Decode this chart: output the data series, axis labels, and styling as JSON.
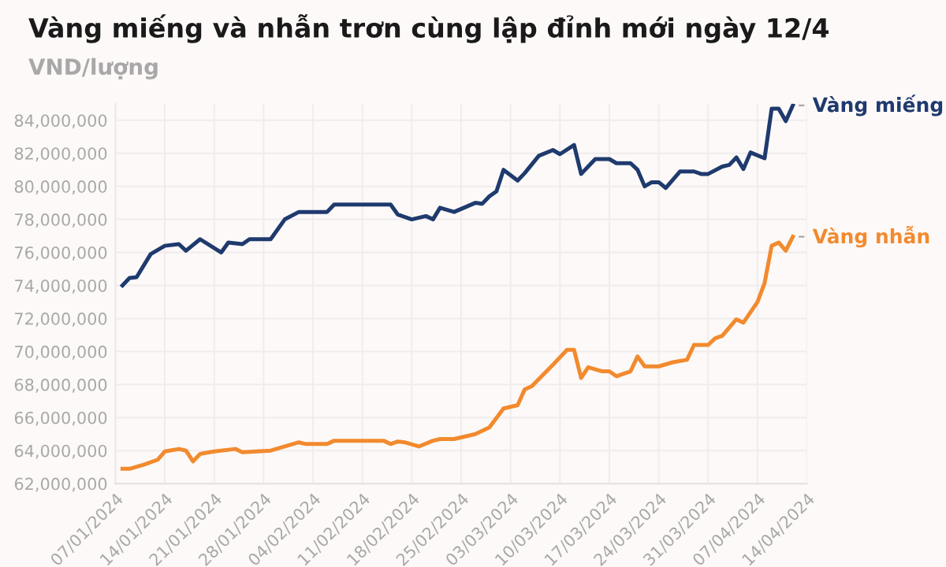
{
  "chart_data": {
    "type": "line",
    "title": "Vàng miếng và nhẫn trơn cùng lập đỉnh mới ngày 12/4",
    "ylabel": "VND/lượng",
    "series": [
      {
        "name": "Vàng miếng",
        "color": "#1f3a6e",
        "x": [
          "2024-01-08",
          "2024-01-09",
          "2024-01-10",
          "2024-01-12",
          "2024-01-14",
          "2024-01-16",
          "2024-01-17",
          "2024-01-19",
          "2024-01-22",
          "2024-01-23",
          "2024-01-25",
          "2024-01-26",
          "2024-01-29",
          "2024-01-31",
          "2024-02-02",
          "2024-02-06",
          "2024-02-07",
          "2024-02-15",
          "2024-02-16",
          "2024-02-18",
          "2024-02-20",
          "2024-02-21",
          "2024-02-22",
          "2024-02-24",
          "2024-02-27",
          "2024-02-28",
          "2024-02-29",
          "2024-03-01",
          "2024-03-02",
          "2024-03-04",
          "2024-03-05",
          "2024-03-07",
          "2024-03-09",
          "2024-03-10",
          "2024-03-12",
          "2024-03-13",
          "2024-03-15",
          "2024-03-17",
          "2024-03-18",
          "2024-03-20",
          "2024-03-21",
          "2024-03-22",
          "2024-03-23",
          "2024-03-24",
          "2024-03-25",
          "2024-03-27",
          "2024-03-29",
          "2024-03-30",
          "2024-03-31",
          "2024-04-02",
          "2024-04-03",
          "2024-04-04",
          "2024-04-05",
          "2024-04-06",
          "2024-04-08",
          "2024-04-09",
          "2024-04-10",
          "2024-04-11",
          "2024-04-12"
        ],
        "values": [
          74000000,
          74450000,
          74500000,
          75900000,
          76400000,
          76500000,
          76100000,
          76800000,
          76000000,
          76600000,
          76500000,
          76800000,
          76800000,
          78000000,
          78450000,
          78450000,
          78900000,
          78900000,
          78300000,
          78000000,
          78200000,
          78000000,
          78700000,
          78450000,
          79000000,
          78950000,
          79400000,
          79700000,
          81000000,
          80350000,
          80800000,
          81850000,
          82200000,
          81950000,
          82500000,
          80750000,
          81650000,
          81650000,
          81400000,
          81400000,
          81000000,
          80000000,
          80250000,
          80250000,
          79900000,
          80900000,
          80900000,
          80750000,
          80750000,
          81200000,
          81300000,
          81750000,
          81050000,
          82050000,
          81700000,
          84700000,
          84700000,
          83950000,
          84900000
        ]
      },
      {
        "name": "Vàng nhẫn",
        "color": "#f28a2e",
        "x": [
          "2024-01-08",
          "2024-01-09",
          "2024-01-11",
          "2024-01-13",
          "2024-01-14",
          "2024-01-16",
          "2024-01-17",
          "2024-01-18",
          "2024-01-19",
          "2024-01-21",
          "2024-01-24",
          "2024-01-25",
          "2024-01-27",
          "2024-01-29",
          "2024-01-31",
          "2024-02-02",
          "2024-02-03",
          "2024-02-06",
          "2024-02-07",
          "2024-02-14",
          "2024-02-15",
          "2024-02-16",
          "2024-02-17",
          "2024-02-19",
          "2024-02-21",
          "2024-02-22",
          "2024-02-24",
          "2024-02-27",
          "2024-02-29",
          "2024-03-02",
          "2024-03-04",
          "2024-03-05",
          "2024-03-06",
          "2024-03-09",
          "2024-03-11",
          "2024-03-12",
          "2024-03-13",
          "2024-03-14",
          "2024-03-16",
          "2024-03-17",
          "2024-03-18",
          "2024-03-19",
          "2024-03-20",
          "2024-03-21",
          "2024-03-22",
          "2024-03-24",
          "2024-03-26",
          "2024-03-28",
          "2024-03-29",
          "2024-03-31",
          "2024-04-01",
          "2024-04-02",
          "2024-04-04",
          "2024-04-05",
          "2024-04-07",
          "2024-04-08",
          "2024-04-09",
          "2024-04-10",
          "2024-04-11",
          "2024-04-12"
        ],
        "values": [
          62900000,
          62900000,
          63150000,
          63450000,
          63950000,
          64100000,
          64000000,
          63350000,
          63800000,
          63950000,
          64100000,
          63900000,
          63950000,
          64000000,
          64250000,
          64500000,
          64400000,
          64400000,
          64600000,
          64600000,
          64400000,
          64550000,
          64500000,
          64250000,
          64600000,
          64700000,
          64700000,
          65000000,
          65400000,
          66550000,
          66750000,
          67700000,
          67900000,
          69200000,
          70100000,
          70100000,
          68400000,
          69050000,
          68800000,
          68800000,
          68500000,
          68650000,
          68800000,
          69700000,
          69100000,
          69100000,
          69350000,
          69500000,
          70400000,
          70400000,
          70800000,
          70950000,
          71950000,
          71750000,
          73000000,
          74150000,
          76400000,
          76600000,
          76100000,
          76950000
        ]
      }
    ],
    "xlim": [
      "2024-01-07",
      "2024-04-14"
    ],
    "xticks": [
      {
        "value": "2024-01-07",
        "label": "07/01/2024"
      },
      {
        "value": "2024-01-14",
        "label": "14/01/2024"
      },
      {
        "value": "2024-01-21",
        "label": "21/01/2024"
      },
      {
        "value": "2024-01-28",
        "label": "28/01/2024"
      },
      {
        "value": "2024-02-04",
        "label": "04/02/2024"
      },
      {
        "value": "2024-02-11",
        "label": "11/02/2024"
      },
      {
        "value": "2024-02-18",
        "label": "18/02/2024"
      },
      {
        "value": "2024-02-25",
        "label": "25/02/2024"
      },
      {
        "value": "2024-03-03",
        "label": "03/03/2024"
      },
      {
        "value": "2024-03-10",
        "label": "10/03/2024"
      },
      {
        "value": "2024-03-17",
        "label": "17/03/2024"
      },
      {
        "value": "2024-03-24",
        "label": "24/03/2024"
      },
      {
        "value": "2024-03-31",
        "label": "31/03/2024"
      },
      {
        "value": "2024-04-07",
        "label": "07/04/2024"
      },
      {
        "value": "2024-04-14",
        "label": "14/04/2024"
      }
    ],
    "ylim": [
      62000000,
      85000000
    ],
    "yticks": [
      {
        "value": 62000000,
        "label": "62,000,000"
      },
      {
        "value": 64000000,
        "label": "64,000,000"
      },
      {
        "value": 66000000,
        "label": "66,000,000"
      },
      {
        "value": 68000000,
        "label": "68,000,000"
      },
      {
        "value": 70000000,
        "label": "70,000,000"
      },
      {
        "value": 72000000,
        "label": "72,000,000"
      },
      {
        "value": 74000000,
        "label": "74,000,000"
      },
      {
        "value": 76000000,
        "label": "76,000,000"
      },
      {
        "value": 78000000,
        "label": "78,000,000"
      },
      {
        "value": 80000000,
        "label": "80,000,000"
      },
      {
        "value": 82000000,
        "label": "82,000,000"
      },
      {
        "value": 84000000,
        "label": "84,000,000"
      }
    ],
    "grid": true,
    "legend": "right",
    "marker": "none",
    "line_style": "solid"
  }
}
